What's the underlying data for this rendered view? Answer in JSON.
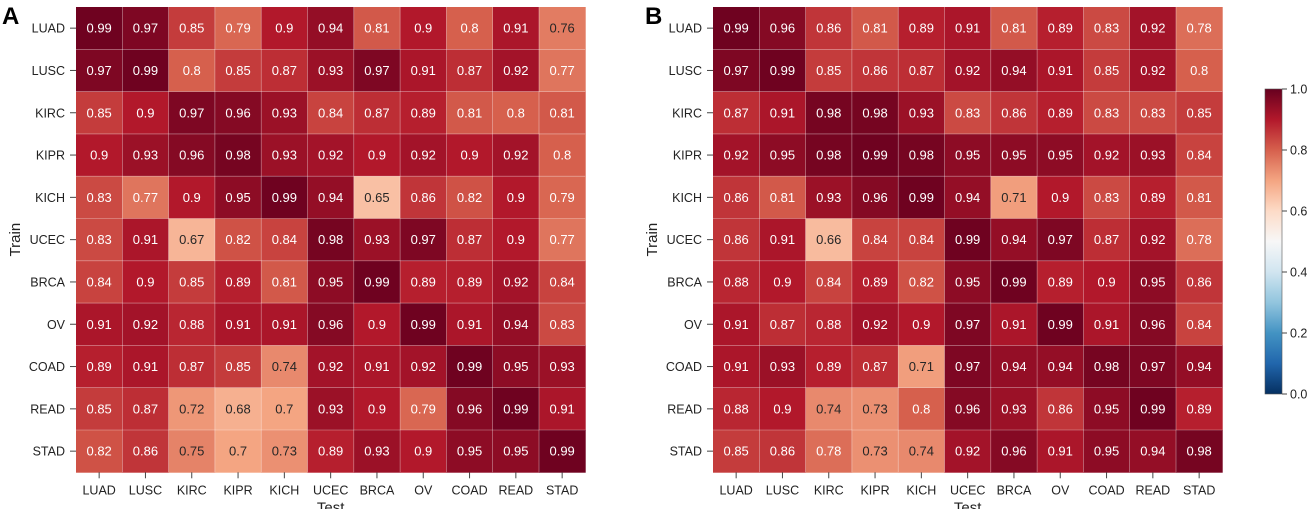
{
  "chart_data": [
    {
      "type": "heatmap",
      "panel_label": "A",
      "title": "",
      "xlabel": "Test",
      "ylabel": "Train",
      "x_categories": [
        "LUAD",
        "LUSC",
        "KIRC",
        "KIPR",
        "KICH",
        "UCEC",
        "BRCA",
        "OV",
        "COAD",
        "READ",
        "STAD"
      ],
      "y_categories": [
        "LUAD",
        "LUSC",
        "KIRC",
        "KIPR",
        "KICH",
        "UCEC",
        "BRCA",
        "OV",
        "COAD",
        "READ",
        "STAD"
      ],
      "values": [
        [
          0.99,
          0.97,
          0.85,
          0.79,
          0.9,
          0.94,
          0.81,
          0.9,
          0.8,
          0.91,
          0.76
        ],
        [
          0.97,
          0.99,
          0.8,
          0.85,
          0.87,
          0.93,
          0.97,
          0.91,
          0.87,
          0.92,
          0.77
        ],
        [
          0.85,
          0.9,
          0.97,
          0.96,
          0.93,
          0.84,
          0.87,
          0.89,
          0.81,
          0.8,
          0.81
        ],
        [
          0.9,
          0.93,
          0.96,
          0.98,
          0.93,
          0.92,
          0.9,
          0.92,
          0.9,
          0.92,
          0.8
        ],
        [
          0.83,
          0.77,
          0.9,
          0.95,
          0.99,
          0.94,
          0.65,
          0.86,
          0.82,
          0.9,
          0.79
        ],
        [
          0.83,
          0.91,
          0.67,
          0.82,
          0.84,
          0.98,
          0.93,
          0.97,
          0.87,
          0.9,
          0.77
        ],
        [
          0.84,
          0.9,
          0.85,
          0.89,
          0.81,
          0.95,
          0.99,
          0.89,
          0.89,
          0.92,
          0.84
        ],
        [
          0.91,
          0.92,
          0.88,
          0.91,
          0.91,
          0.96,
          0.9,
          0.99,
          0.91,
          0.94,
          0.83
        ],
        [
          0.89,
          0.91,
          0.87,
          0.85,
          0.74,
          0.92,
          0.91,
          0.92,
          0.99,
          0.95,
          0.93
        ],
        [
          0.85,
          0.87,
          0.72,
          0.68,
          0.7,
          0.93,
          0.9,
          0.79,
          0.96,
          0.99,
          0.91
        ],
        [
          0.82,
          0.86,
          0.75,
          0.7,
          0.73,
          0.89,
          0.93,
          0.9,
          0.95,
          0.95,
          0.99
        ]
      ],
      "value_range": [
        0.0,
        1.0
      ]
    },
    {
      "type": "heatmap",
      "panel_label": "B",
      "title": "",
      "xlabel": "Test",
      "ylabel": "Train",
      "x_categories": [
        "LUAD",
        "LUSC",
        "KIRC",
        "KIPR",
        "KICH",
        "UCEC",
        "BRCA",
        "OV",
        "COAD",
        "READ",
        "STAD"
      ],
      "y_categories": [
        "LUAD",
        "LUSC",
        "KIRC",
        "KIPR",
        "KICH",
        "UCEC",
        "BRCA",
        "OV",
        "COAD",
        "READ",
        "STAD"
      ],
      "values": [
        [
          0.99,
          0.96,
          0.86,
          0.81,
          0.89,
          0.91,
          0.81,
          0.89,
          0.83,
          0.92,
          0.78
        ],
        [
          0.97,
          0.99,
          0.85,
          0.86,
          0.87,
          0.92,
          0.94,
          0.91,
          0.85,
          0.92,
          0.8
        ],
        [
          0.87,
          0.91,
          0.98,
          0.98,
          0.93,
          0.83,
          0.86,
          0.89,
          0.83,
          0.83,
          0.85
        ],
        [
          0.92,
          0.95,
          0.98,
          0.99,
          0.98,
          0.95,
          0.95,
          0.95,
          0.92,
          0.93,
          0.84
        ],
        [
          0.86,
          0.81,
          0.93,
          0.96,
          0.99,
          0.94,
          0.71,
          0.9,
          0.83,
          0.89,
          0.81
        ],
        [
          0.86,
          0.91,
          0.66,
          0.84,
          0.84,
          0.99,
          0.94,
          0.97,
          0.87,
          0.92,
          0.78
        ],
        [
          0.88,
          0.9,
          0.84,
          0.89,
          0.82,
          0.95,
          0.99,
          0.89,
          0.9,
          0.95,
          0.86
        ],
        [
          0.91,
          0.87,
          0.88,
          0.92,
          0.9,
          0.97,
          0.91,
          0.99,
          0.91,
          0.96,
          0.84
        ],
        [
          0.91,
          0.93,
          0.89,
          0.87,
          0.71,
          0.97,
          0.94,
          0.94,
          0.98,
          0.97,
          0.94
        ],
        [
          0.88,
          0.9,
          0.74,
          0.73,
          0.8,
          0.96,
          0.93,
          0.86,
          0.95,
          0.99,
          0.89
        ],
        [
          0.85,
          0.86,
          0.78,
          0.73,
          0.74,
          0.92,
          0.96,
          0.91,
          0.95,
          0.94,
          0.98
        ]
      ],
      "value_range": [
        0.0,
        1.0
      ]
    }
  ],
  "colorbar": {
    "colormap": "RdBu_r",
    "range": [
      0.0,
      1.0
    ],
    "ticks": [
      0.0,
      0.2,
      0.4,
      0.6,
      0.8,
      1.0
    ],
    "tick_labels": [
      "0.0",
      "0.2",
      "0.4",
      "0.6",
      "0.8",
      "1.0"
    ]
  }
}
